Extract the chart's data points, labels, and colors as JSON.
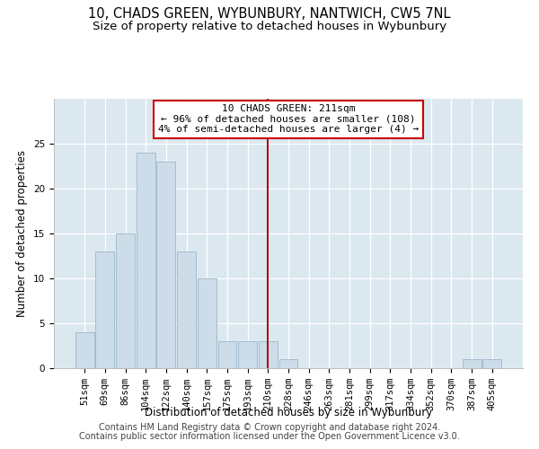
{
  "title": "10, CHADS GREEN, WYBUNBURY, NANTWICH, CW5 7NL",
  "subtitle": "Size of property relative to detached houses in Wybunbury",
  "xlabel": "Distribution of detached houses by size in Wybunbury",
  "ylabel": "Number of detached properties",
  "bar_categories": [
    "51sqm",
    "69sqm",
    "86sqm",
    "104sqm",
    "122sqm",
    "140sqm",
    "157sqm",
    "175sqm",
    "193sqm",
    "210sqm",
    "228sqm",
    "246sqm",
    "263sqm",
    "281sqm",
    "299sqm",
    "317sqm",
    "334sqm",
    "352sqm",
    "370sqm",
    "387sqm",
    "405sqm"
  ],
  "bar_values": [
    4,
    13,
    15,
    24,
    23,
    13,
    10,
    3,
    3,
    3,
    1,
    0,
    0,
    0,
    0,
    0,
    0,
    0,
    0,
    1,
    1
  ],
  "bar_color": "#ccdce8",
  "bar_edge_color": "#9ab8cc",
  "highlight_line_index": 9,
  "highlight_line_color": "#aa0000",
  "annotation_text": "10 CHADS GREEN: 211sqm\n← 96% of detached houses are smaller (108)\n4% of semi-detached houses are larger (4) →",
  "annotation_box_color": "#ffffff",
  "annotation_box_edge_color": "#cc0000",
  "ylim": [
    0,
    30
  ],
  "yticks": [
    0,
    5,
    10,
    15,
    20,
    25
  ],
  "background_color": "#dce8f0",
  "footer_line1": "Contains HM Land Registry data © Crown copyright and database right 2024.",
  "footer_line2": "Contains public sector information licensed under the Open Government Licence v3.0.",
  "title_fontsize": 10.5,
  "subtitle_fontsize": 9.5,
  "axis_label_fontsize": 8.5,
  "tick_fontsize": 7.5,
  "footer_fontsize": 7,
  "annot_fontsize": 8
}
